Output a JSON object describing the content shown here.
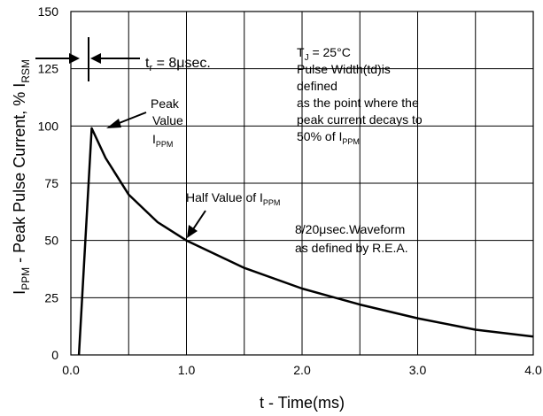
{
  "chart_data": {
    "type": "line",
    "xlabel": "t - Time(ms)",
    "ylabel": {
      "main": "I",
      "sub1": "PPM",
      "mid": " - Peak Pulse Current, % I",
      "sub2": "RSM"
    },
    "xlim": [
      0,
      4.0
    ],
    "ylim": [
      0,
      150
    ],
    "x_ticks": [
      "0.0",
      "1.0",
      "2.0",
      "3.0",
      "4.0"
    ],
    "y_ticks": [
      "0",
      "25",
      "50",
      "75",
      "100",
      "125",
      "150"
    ],
    "grid": true,
    "series": [
      {
        "x": [
          0.07,
          0.18,
          0.3,
          0.5,
          0.75,
          1.0,
          1.5,
          2.0,
          2.5,
          3.0,
          3.5,
          4.0
        ],
        "y": [
          0,
          99,
          86,
          70,
          58,
          50,
          38,
          29,
          22,
          16,
          11,
          8
        ]
      }
    ],
    "annotations": {
      "tr": {
        "main": "t",
        "sub": "r",
        "rest": " = 8μsec."
      },
      "peak": {
        "line1": "Peak",
        "line2": "Value",
        "line3_main": "I",
        "line3_sub": "PPM"
      },
      "half": {
        "main": "Half Value of I",
        "sub": "PPM"
      },
      "conditions": {
        "tj_main": "T",
        "tj_sub": "J",
        "tj_rest": " = 25°C",
        "line2": "Pulse Width(td)is",
        "line3": "defined",
        "line4": "as the point where the",
        "line5": "peak current decays to",
        "line6_main": "50% of I",
        "line6_sub": "PPM"
      },
      "waveform": {
        "line1": "8/20μsec.Waveform",
        "line2": "as defined by R.E.A."
      }
    }
  }
}
